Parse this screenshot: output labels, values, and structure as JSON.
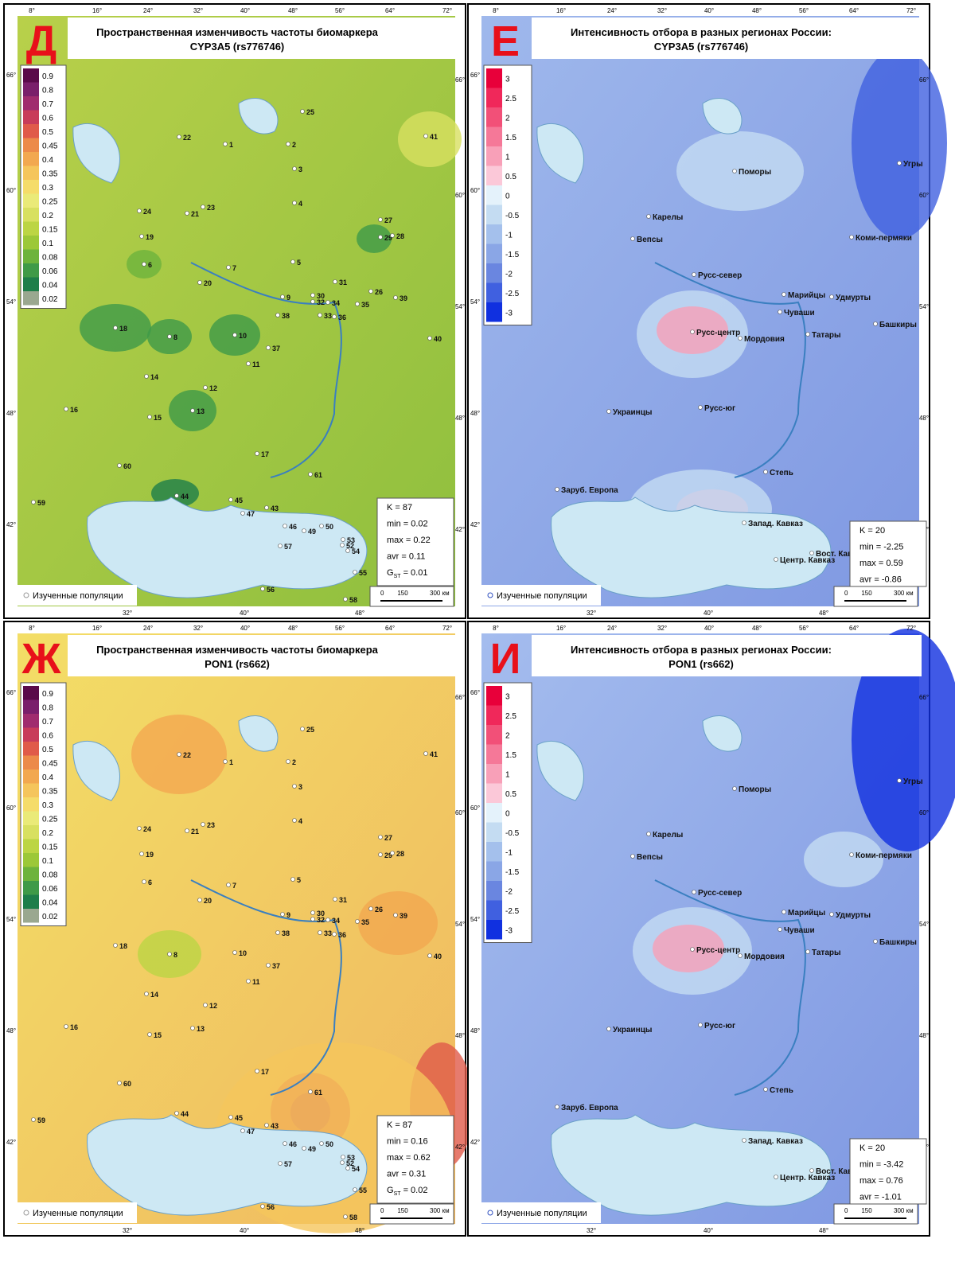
{
  "panels": [
    {
      "letter": "Д",
      "title": [
        "Пространственная изменчивость частоты биомаркера",
        "CYP3A5 (rs776746)"
      ],
      "legend": [
        0.9,
        0.8,
        0.7,
        0.6,
        0.5,
        0.45,
        0.4,
        0.35,
        0.3,
        0.25,
        0.2,
        0.15,
        0.1,
        0.08,
        0.06,
        0.04,
        0.02
      ],
      "legend_colors": [
        "#5a0a4a",
        "#7a1f6b",
        "#a02c6e",
        "#c83c5a",
        "#e05a4a",
        "#ec8a4a",
        "#f2a850",
        "#f5c55c",
        "#f5dc6a",
        "#eaea78",
        "#d8e060",
        "#bcd544",
        "#9cc838",
        "#6db33c",
        "#3f9a48",
        "#1e7e4a",
        "#9aa890"
      ],
      "points": [
        "25",
        "22",
        "1",
        "2",
        "41",
        "3",
        "4",
        "24",
        "21",
        "23",
        "27",
        "29",
        "28",
        "19",
        "5",
        "6",
        "7",
        "20",
        "31",
        "26",
        "9",
        "30",
        "32",
        "34",
        "35",
        "39",
        "38",
        "33",
        "36",
        "18",
        "8",
        "10",
        "40",
        "37",
        "11",
        "14",
        "12",
        "16",
        "15",
        "13",
        "17",
        "60",
        "61",
        "59",
        "44",
        "45",
        "43",
        "46",
        "49",
        "50",
        "53",
        "52",
        "54",
        "57",
        "55",
        "56",
        "58",
        "47"
      ],
      "stats": [
        "K = 87",
        "min = 0.02",
        "max = 0.22",
        "avr = 0.11"
      ],
      "gst": {
        "symbol": "G",
        "sub": "ST",
        "text": " = 0.01"
      }
    },
    {
      "letter": "Е",
      "title": [
        "Интенсивность отбора в разных регионах России:",
        "CYP3A5 (rs776746)"
      ],
      "legend": [
        3,
        2.5,
        2,
        1.5,
        1,
        0.5,
        0,
        -0.5,
        -1,
        -1.5,
        -2,
        -2.5,
        -3
      ],
      "legend_colors": [
        "#e8003a",
        "#f0285a",
        "#f25078",
        "#f57898",
        "#f8a0b8",
        "#fbc8d8",
        "#e4f2fb",
        "#c4dcf2",
        "#a4c0ec",
        "#8aa6e6",
        "#6a86e0",
        "#4060e0",
        "#1030e0"
      ],
      "points": [
        "Поморы",
        "Угры",
        "Карелы",
        "Вепсы",
        "Коми-пермяки",
        "Русс-север",
        "Марийцы",
        "Удмурты",
        "Чуваши",
        "Башкиры",
        "Русс-центр",
        "Мордовия",
        "Татары",
        "Украинцы",
        "Русс-юг",
        "Степь",
        "Заруб. Европа",
        "Запад. Кавказ",
        "Вост. Кавказ",
        "Центр. Кавказ"
      ],
      "stats": [
        "K = 20",
        "min = -2.25",
        "max = 0.59",
        "avr = -0.86"
      ]
    },
    {
      "letter": "Ж",
      "title": [
        "Пространственная изменчивость частоты биомаркера",
        "PON1 (rs662)"
      ],
      "legend": [
        0.9,
        0.8,
        0.7,
        0.6,
        0.5,
        0.45,
        0.4,
        0.35,
        0.3,
        0.25,
        0.2,
        0.15,
        0.1,
        0.08,
        0.06,
        0.04,
        0.02
      ],
      "legend_colors": [
        "#5a0a4a",
        "#7a1f6b",
        "#a02c6e",
        "#c83c5a",
        "#e05a4a",
        "#ec8a4a",
        "#f2a850",
        "#f5c55c",
        "#f5dc6a",
        "#eaea78",
        "#d8e060",
        "#bcd544",
        "#9cc838",
        "#6db33c",
        "#3f9a48",
        "#1e7e4a",
        "#9aa890"
      ],
      "points": [
        "25",
        "22",
        "1",
        "2",
        "41",
        "3",
        "4",
        "24",
        "21",
        "23",
        "27",
        "29",
        "28",
        "19",
        "5",
        "6",
        "7",
        "20",
        "31",
        "26",
        "9",
        "30",
        "32",
        "34",
        "35",
        "39",
        "38",
        "33",
        "36",
        "18",
        "8",
        "10",
        "40",
        "37",
        "11",
        "14",
        "12",
        "16",
        "15",
        "13",
        "17",
        "60",
        "61",
        "59",
        "44",
        "45",
        "43",
        "46",
        "49",
        "50",
        "53",
        "52",
        "54",
        "57",
        "55",
        "56",
        "58",
        "47"
      ],
      "stats": [
        "K = 87",
        "min = 0.16",
        "max = 0.62",
        "avr = 0.31"
      ],
      "gst": {
        "symbol": "G",
        "sub": "ST",
        "text": " = 0.02"
      }
    },
    {
      "letter": "И",
      "title": [
        "Интенсивность отбора в разных регионах России:",
        "PON1 (rs662)"
      ],
      "legend": [
        3,
        2.5,
        2,
        1.5,
        1,
        0.5,
        0,
        -0.5,
        -1,
        -1.5,
        -2,
        -2.5,
        -3
      ],
      "legend_colors": [
        "#e8003a",
        "#f0285a",
        "#f25078",
        "#f57898",
        "#f8a0b8",
        "#fbc8d8",
        "#e4f2fb",
        "#c4dcf2",
        "#a4c0ec",
        "#8aa6e6",
        "#6a86e0",
        "#4060e0",
        "#1030e0"
      ],
      "points": [
        "Поморы",
        "Угры",
        "Карелы",
        "Вепсы",
        "Коми-пермяки",
        "Русс-север",
        "Марийцы",
        "Удмурты",
        "Чуваши",
        "Башкиры",
        "Русс-центр",
        "Мордовия",
        "Татары",
        "Украинцы",
        "Русс-юг",
        "Степь",
        "Заруб. Европа",
        "Запад. Кавказ",
        "Вост. Кавказ",
        "Центр. Кавказ"
      ],
      "stats": [
        "K = 20",
        "min = -3.42",
        "max = 0.76",
        "avr = -1.01"
      ]
    }
  ],
  "graticule": {
    "lon_top": [
      "8°",
      "16°",
      "24°",
      "32°",
      "40°",
      "48°",
      "56°",
      "64°",
      "72°"
    ],
    "lon_bottom": [
      "32°",
      "40°",
      "48°"
    ],
    "lat": [
      "66°",
      "60°",
      "54°",
      "48°",
      "42°"
    ]
  },
  "note": "Изученные популяции",
  "scale": [
    "0",
    "150",
    "300 км"
  ]
}
